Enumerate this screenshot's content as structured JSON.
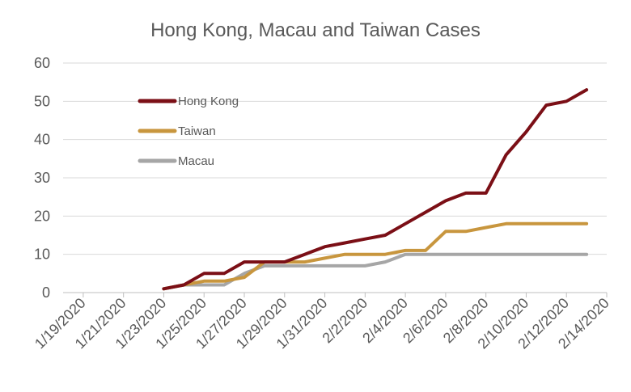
{
  "chart_data": {
    "type": "line",
    "title": "Hong Kong, Macau and Taiwan Cases",
    "xlabel": "",
    "ylabel": "",
    "x_dates": [
      "1/22/2020",
      "1/23/2020",
      "1/24/2020",
      "1/25/2020",
      "1/26/2020",
      "1/27/2020",
      "1/28/2020",
      "1/29/2020",
      "1/30/2020",
      "1/31/2020",
      "2/1/2020",
      "2/2/2020",
      "2/3/2020",
      "2/4/2020",
      "2/5/2020",
      "2/6/2020",
      "2/7/2020",
      "2/8/2020",
      "2/9/2020",
      "2/10/2020",
      "2/11/2020",
      "2/12/2020",
      "2/13/2020"
    ],
    "x_range": [
      "1/18/2020",
      "2/14/2020"
    ],
    "x_ticks": [
      "1/19/2020",
      "1/21/2020",
      "1/23/2020",
      "1/25/2020",
      "1/27/2020",
      "1/29/2020",
      "1/31/2020",
      "2/2/2020",
      "2/4/2020",
      "2/6/2020",
      "2/8/2020",
      "2/10/2020",
      "2/12/2020",
      "2/14/2020"
    ],
    "ylim": [
      0,
      60
    ],
    "y_ticks": [
      0,
      10,
      20,
      30,
      40,
      50,
      60
    ],
    "grid": true,
    "legend_position": "upper-left inside",
    "series": [
      {
        "name": "Hong Kong",
        "color": "#7b0f16",
        "values": [
          null,
          1,
          2,
          5,
          5,
          8,
          8,
          8,
          10,
          12,
          13,
          14,
          15,
          18,
          21,
          24,
          26,
          26,
          36,
          42,
          49,
          50,
          53
        ]
      },
      {
        "name": "Taiwan",
        "color": "#c8963e",
        "values": [
          null,
          1,
          2,
          3,
          3,
          4,
          8,
          8,
          8,
          9,
          10,
          10,
          10,
          11,
          11,
          16,
          16,
          17,
          18,
          18,
          18,
          18,
          18
        ]
      },
      {
        "name": "Macau",
        "color": "#a6a6a6",
        "values": [
          null,
          1,
          2,
          2,
          2,
          5,
          7,
          7,
          7,
          7,
          7,
          7,
          8,
          10,
          10,
          10,
          10,
          10,
          10,
          10,
          10,
          10,
          10
        ]
      }
    ]
  }
}
